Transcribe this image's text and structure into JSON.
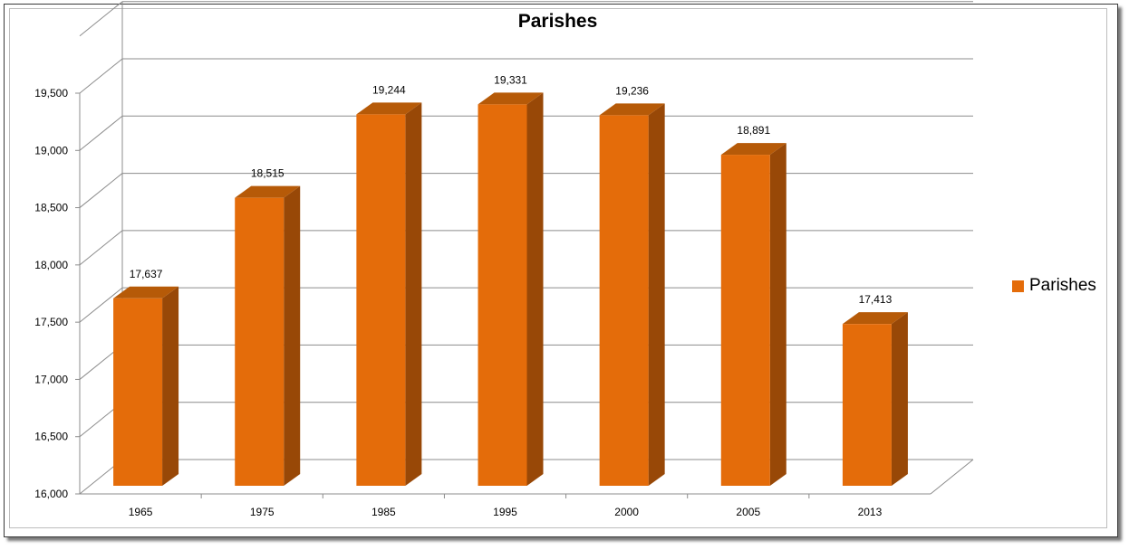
{
  "chart_data": {
    "type": "bar",
    "title": "Parishes",
    "categories": [
      "1965",
      "1975",
      "1985",
      "1995",
      "2000",
      "2005",
      "2013"
    ],
    "series": [
      {
        "name": "Parishes",
        "values": [
          17637,
          18515,
          19244,
          19331,
          19236,
          18891,
          17413
        ]
      }
    ],
    "data_labels": [
      "17,637",
      "18,515",
      "19,244",
      "19,331",
      "19,236",
      "18,891",
      "17,413"
    ],
    "y_ticks": [
      "16,000",
      "16,500",
      "17,000",
      "17,500",
      "18,000",
      "18,500",
      "19,000",
      "19,500"
    ],
    "ylim": [
      16000,
      19500
    ],
    "xlabel": "",
    "ylabel": "",
    "grid": true,
    "legend_position": "right",
    "style": "3d-column",
    "colors": {
      "bar_front": "#E46C0A",
      "bar_side": "#984807",
      "bar_top": "#B65A08",
      "grid": "#8c8c8c"
    }
  }
}
